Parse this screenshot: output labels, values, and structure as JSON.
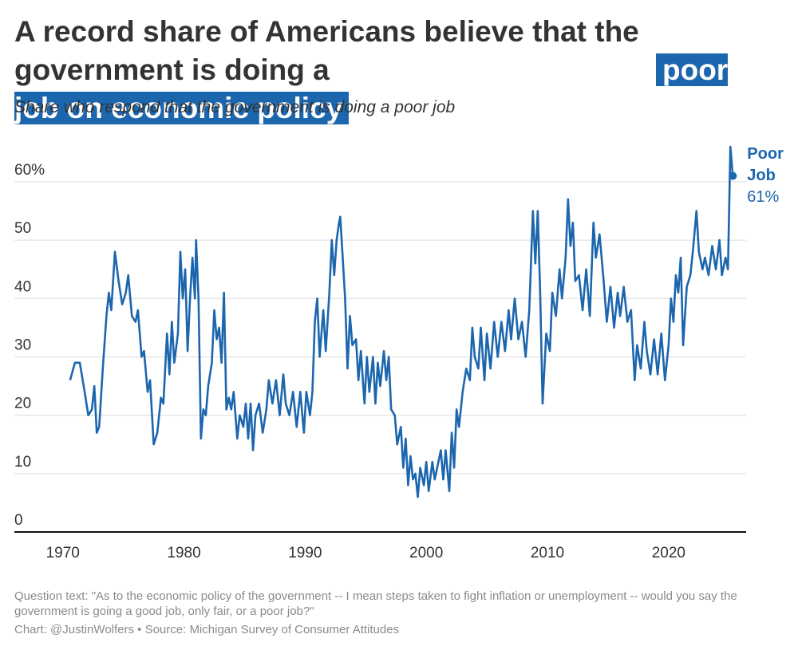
{
  "chart_data": {
    "type": "line",
    "title": "A record share of Americans believe that the government is doing a",
    "title_highlight": "poor job on economic policy",
    "subtitle": "Share who respond that the government is doing a poor job",
    "note": "Question text: \"As to the economic policy of the government -- I mean steps taken to fight inflation or unemployment -- would you say the government is going a good job, only fair, or a poor job?\"",
    "credit": "Chart: @JustinWolfers • Source: Michigan Survey of Consumer Attitudes",
    "x": [
      1970.6,
      1971.0,
      1971.4,
      1971.8,
      1972.1,
      1972.4,
      1972.6,
      1972.8,
      1973.0,
      1973.3,
      1973.6,
      1973.8,
      1974.0,
      1974.3,
      1974.6,
      1974.9,
      1975.2,
      1975.4,
      1975.7,
      1976.0,
      1976.2,
      1976.5,
      1976.7,
      1977.0,
      1977.2,
      1977.5,
      1977.8,
      1978.1,
      1978.3,
      1978.6,
      1978.8,
      1979.0,
      1979.2,
      1979.5,
      1979.7,
      1979.9,
      1980.1,
      1980.3,
      1980.5,
      1980.7,
      1980.9,
      1981.0,
      1981.2,
      1981.4,
      1981.6,
      1981.8,
      1982.0,
      1982.3,
      1982.5,
      1982.7,
      1982.9,
      1983.1,
      1983.3,
      1983.5,
      1983.7,
      1983.9,
      1984.1,
      1984.4,
      1984.6,
      1984.9,
      1985.1,
      1985.3,
      1985.5,
      1985.7,
      1985.9,
      1986.2,
      1986.5,
      1986.8,
      1987.0,
      1987.3,
      1987.6,
      1987.9,
      1988.2,
      1988.4,
      1988.7,
      1989.0,
      1989.3,
      1989.6,
      1989.9,
      1990.1,
      1990.4,
      1990.6,
      1990.8,
      1991.0,
      1991.2,
      1991.5,
      1991.7,
      1992.0,
      1992.2,
      1992.4,
      1992.6,
      1992.8,
      1992.9,
      1993.1,
      1993.3,
      1993.5,
      1993.7,
      1993.9,
      1994.2,
      1994.4,
      1994.6,
      1994.9,
      1995.1,
      1995.3,
      1995.6,
      1995.8,
      1996.0,
      1996.2,
      1996.5,
      1996.7,
      1996.9,
      1997.1,
      1997.4,
      1997.6,
      1997.9,
      1998.1,
      1998.3,
      1998.5,
      1998.7,
      1998.9,
      1999.1,
      1999.3,
      1999.5,
      1999.8,
      2000.0,
      2000.2,
      2000.5,
      2000.7,
      2000.9,
      2001.2,
      2001.4,
      2001.6,
      2001.9,
      2002.1,
      2002.3,
      2002.5,
      2002.7,
      2003.0,
      2003.3,
      2003.6,
      2003.8,
      2004.0,
      2004.3,
      2004.5,
      2004.8,
      2005.0,
      2005.3,
      2005.6,
      2005.9,
      2006.2,
      2006.5,
      2006.8,
      2007.0,
      2007.3,
      2007.6,
      2007.9,
      2008.2,
      2008.5,
      2008.8,
      2009.0,
      2009.2,
      2009.4,
      2009.6,
      2009.9,
      2010.2,
      2010.4,
      2010.7,
      2011.0,
      2011.2,
      2011.5,
      2011.7,
      2011.9,
      2012.1,
      2012.3,
      2012.6,
      2012.9,
      2013.2,
      2013.5,
      2013.8,
      2014.0,
      2014.3,
      2014.6,
      2014.9,
      2015.2,
      2015.5,
      2015.8,
      2016.0,
      2016.3,
      2016.6,
      2016.9,
      2017.2,
      2017.4,
      2017.7,
      2018.0,
      2018.2,
      2018.5,
      2018.8,
      2019.1,
      2019.4,
      2019.7,
      2020.0,
      2020.2,
      2020.4,
      2020.6,
      2020.8,
      2021.0,
      2021.2,
      2021.5,
      2021.8,
      2022.0,
      2022.3,
      2022.5,
      2022.8,
      2023.0,
      2023.3,
      2023.6,
      2023.9,
      2024.2,
      2024.4,
      2024.7,
      2024.9,
      2025.1,
      2025.3
    ],
    "series": [
      {
        "name": "Poor Job",
        "color": "#1c66ae",
        "values": [
          26,
          29,
          29,
          24,
          20,
          21,
          25,
          17,
          18,
          28,
          37,
          41,
          38,
          48,
          43,
          39,
          41,
          44,
          37,
          36,
          38,
          30,
          31,
          24,
          26,
          15,
          17,
          23,
          22,
          34,
          27,
          36,
          29,
          34,
          48,
          40,
          45,
          31,
          40,
          47,
          40,
          50,
          40,
          16,
          21,
          20,
          25,
          29,
          38,
          33,
          35,
          29,
          41,
          21,
          23,
          21,
          24,
          16,
          20,
          18,
          22,
          16,
          22,
          14,
          20,
          22,
          17,
          21,
          26,
          22,
          26,
          20,
          27,
          22,
          20,
          24,
          18,
          24,
          17,
          24,
          20,
          24,
          36,
          40,
          30,
          38,
          31,
          41,
          50,
          44,
          50,
          53,
          54,
          47,
          40,
          28,
          37,
          32,
          33,
          26,
          31,
          22,
          30,
          24,
          30,
          22,
          29,
          25,
          31,
          26,
          30,
          21,
          20,
          15,
          18,
          11,
          16,
          8,
          13,
          9,
          10,
          6,
          11,
          8,
          12,
          7,
          12,
          9,
          11,
          14,
          9,
          14,
          7,
          17,
          11,
          21,
          18,
          24,
          28,
          26,
          35,
          30,
          28,
          35,
          26,
          34,
          28,
          36,
          30,
          36,
          31,
          38,
          33,
          40,
          33,
          36,
          30,
          38,
          55,
          46,
          55,
          41,
          22,
          34,
          31,
          41,
          37,
          45,
          40,
          47,
          57,
          49,
          53,
          43,
          44,
          38,
          45,
          37,
          53,
          47,
          51,
          44,
          36,
          42,
          35,
          41,
          37,
          42,
          36,
          38,
          26,
          32,
          28,
          36,
          31,
          27,
          33,
          27,
          34,
          26,
          32,
          40,
          36,
          44,
          41,
          47,
          32,
          42,
          44,
          48,
          55,
          48,
          45,
          47,
          44,
          49,
          45,
          50,
          44,
          47,
          45,
          66,
          61
        ],
        "value_labels": [
          null,
          null,
          null,
          null,
          null,
          null,
          null,
          null,
          null,
          null,
          null,
          null,
          null,
          null,
          null,
          null,
          null,
          null,
          null,
          null,
          null,
          null,
          null,
          null,
          null,
          null,
          null,
          null,
          null,
          null,
          null,
          null,
          null,
          null,
          null,
          null,
          null,
          null,
          null,
          null,
          null,
          null,
          null,
          null,
          null,
          null,
          null,
          null,
          null,
          null,
          null,
          null,
          null,
          null,
          null,
          null,
          null,
          null,
          null,
          null,
          null,
          null,
          null,
          null,
          null,
          null,
          null,
          null,
          null,
          null,
          null,
          null,
          null,
          null,
          null,
          null,
          null,
          null,
          null,
          null,
          null,
          null,
          null,
          null,
          null,
          null,
          null,
          null,
          null,
          null,
          null,
          null,
          null,
          null,
          null,
          null,
          null,
          null,
          null,
          null,
          null,
          null,
          null,
          null,
          null,
          null,
          null,
          null,
          null,
          null,
          null,
          null,
          null,
          null,
          null,
          null,
          null,
          null,
          null,
          null,
          null,
          null,
          null,
          null,
          null,
          null,
          null,
          null,
          null,
          null,
          null,
          null,
          null,
          null,
          null,
          null,
          null,
          null,
          null,
          null,
          null,
          null,
          null,
          null,
          null,
          null,
          null,
          null,
          null,
          null,
          null,
          null,
          null,
          null,
          null,
          null,
          null,
          null,
          null,
          null,
          null,
          null,
          null,
          null,
          null,
          null,
          null,
          null,
          null,
          null,
          null,
          null,
          null,
          null,
          null,
          null,
          null,
          null,
          null,
          null,
          null,
          null,
          null,
          null,
          null,
          null,
          null,
          null,
          null,
          null,
          null,
          null,
          null,
          null,
          null,
          null,
          null,
          null,
          null,
          null,
          null,
          null,
          null,
          null,
          null,
          null,
          null,
          null,
          null,
          null,
          null,
          null,
          null,
          null,
          null,
          null,
          null,
          null,
          null,
          null,
          null,
          null,
          "61%"
        ]
      }
    ],
    "xlim": [
      1966,
      2026.4
    ],
    "xticks": [
      1970,
      1980,
      1990,
      2000,
      2010,
      2020
    ],
    "ylim": [
      0,
      66
    ],
    "yticks": [
      0,
      10,
      20,
      30,
      40,
      50,
      {
        "value": 60,
        "label": "60%"
      }
    ],
    "grid": true
  }
}
